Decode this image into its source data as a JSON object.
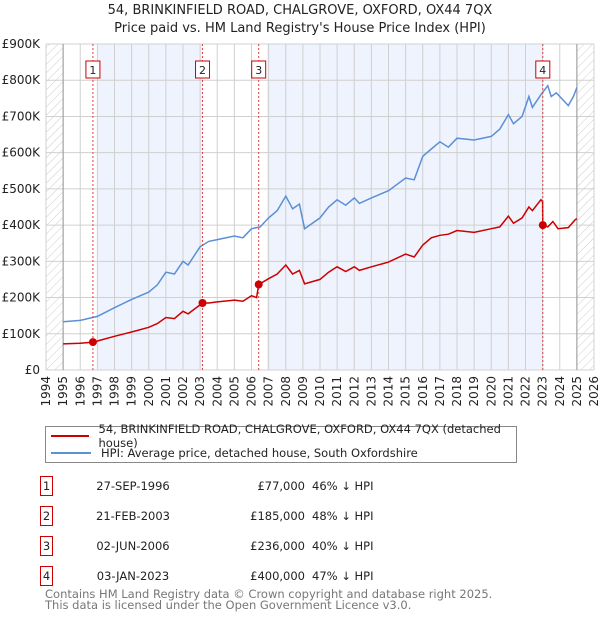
{
  "chart_data": {
    "type": "line",
    "title": "54, BRINKINFIELD ROAD, CHALGROVE, OXFORD, OX44 7QX",
    "subtitle": "Price paid vs. HM Land Registry's House Price Index (HPI)",
    "xlim": [
      1994,
      2026
    ],
    "ylim": [
      0,
      900000
    ],
    "x_ticks": [
      "1994",
      "1995",
      "1996",
      "1997",
      "1998",
      "1999",
      "2000",
      "2001",
      "2002",
      "2003",
      "2004",
      "2005",
      "2006",
      "2007",
      "2008",
      "2009",
      "2010",
      "2011",
      "2012",
      "2013",
      "2014",
      "2015",
      "2016",
      "2017",
      "2018",
      "2019",
      "2020",
      "2021",
      "2022",
      "2023",
      "2024",
      "2025",
      "2026"
    ],
    "y_ticks": [
      {
        "v": 0,
        "label": "£0"
      },
      {
        "v": 100000,
        "label": "£100K"
      },
      {
        "v": 200000,
        "label": "£200K"
      },
      {
        "v": 300000,
        "label": "£300K"
      },
      {
        "v": 400000,
        "label": "£400K"
      },
      {
        "v": 500000,
        "label": "£500K"
      },
      {
        "v": 600000,
        "label": "£600K"
      },
      {
        "v": 700000,
        "label": "£700K"
      },
      {
        "v": 800000,
        "label": "£800K"
      },
      {
        "v": 900000,
        "label": "£900K"
      }
    ],
    "grid": true,
    "legend_position": "below",
    "series": [
      {
        "name": "54, BRINKINFIELD ROAD, CHALGROVE, OXFORD, OX44 7QX (detached house)",
        "color": "#cc0000",
        "x": [
          1995,
          1996,
          1996.74,
          1997,
          1998,
          1999,
          2000,
          2000.5,
          2001,
          2001.5,
          2002,
          2002.3,
          2003.14,
          2003.5,
          2004,
          2005,
          2005.5,
          2006,
          2006.3,
          2006.42,
          2007,
          2007.5,
          2008,
          2008.4,
          2008.8,
          2009.1,
          2010,
          2010.5,
          2011,
          2011.5,
          2012,
          2012.3,
          2013,
          2014,
          2015,
          2015.5,
          2016,
          2016.5,
          2017,
          2017.5,
          2018,
          2019,
          2020,
          2020.5,
          2021,
          2021.3,
          2021.8,
          2022.2,
          2022.4,
          2022.9,
          2023.0,
          2023.01,
          2023.3,
          2023.6,
          2023.9,
          2024.5,
          2024.9,
          2025.0
        ],
        "y": [
          72000,
          74000,
          77000,
          80000,
          93000,
          105000,
          118000,
          128000,
          145000,
          142000,
          162000,
          155000,
          185000,
          185000,
          188000,
          193000,
          190000,
          205000,
          200000,
          236000,
          252000,
          265000,
          290000,
          265000,
          275000,
          238000,
          250000,
          270000,
          285000,
          272000,
          285000,
          275000,
          285000,
          298000,
          320000,
          312000,
          345000,
          365000,
          372000,
          375000,
          385000,
          380000,
          390000,
          395000,
          425000,
          405000,
          420000,
          450000,
          440000,
          470000,
          465000,
          400000,
          395000,
          410000,
          390000,
          393000,
          415000,
          418000
        ]
      },
      {
        "name": "HPI: Average price, detached house, South Oxfordshire",
        "color": "#5b8fd6",
        "x": [
          1995,
          1996,
          1997,
          1998,
          1999,
          2000,
          2000.5,
          2001,
          2001.5,
          2002,
          2002.3,
          2003,
          2003.5,
          2004,
          2005,
          2005.5,
          2006,
          2006.5,
          2007,
          2007.5,
          2008,
          2008.4,
          2008.8,
          2009.1,
          2010,
          2010.5,
          2011,
          2011.5,
          2012,
          2012.3,
          2013,
          2014,
          2015,
          2015.5,
          2016,
          2016.5,
          2017,
          2017.5,
          2018,
          2019,
          2020,
          2020.5,
          2021,
          2021.3,
          2021.8,
          2022.2,
          2022.4,
          2022.9,
          2023.3,
          2023.5,
          2023.8,
          2024.2,
          2024.5,
          2024.8,
          2025.0
        ],
        "y": [
          133000,
          137000,
          148000,
          172000,
          195000,
          215000,
          235000,
          270000,
          265000,
          300000,
          290000,
          340000,
          355000,
          360000,
          370000,
          365000,
          390000,
          395000,
          420000,
          440000,
          480000,
          445000,
          458000,
          390000,
          420000,
          450000,
          470000,
          455000,
          475000,
          460000,
          475000,
          495000,
          530000,
          525000,
          590000,
          610000,
          630000,
          615000,
          640000,
          635000,
          645000,
          665000,
          705000,
          680000,
          700000,
          755000,
          725000,
          760000,
          785000,
          755000,
          765000,
          745000,
          730000,
          755000,
          780000
        ]
      }
    ],
    "sales": [
      {
        "n": "1",
        "x": 1996.74,
        "y": 77000
      },
      {
        "n": "2",
        "x": 2003.14,
        "y": 185000
      },
      {
        "n": "3",
        "x": 2006.42,
        "y": 236000
      },
      {
        "n": "4",
        "x": 2023.01,
        "y": 400000
      }
    ]
  },
  "legend": {
    "property": "54, BRINKINFIELD ROAD, CHALGROVE, OXFORD, OX44 7QX (detached house)",
    "hpi": "HPI: Average price, detached house, South Oxfordshire"
  },
  "transactions": [
    {
      "n": "1",
      "date": "27-SEP-1996",
      "price": "£77,000",
      "hpi": "46% ↓ HPI"
    },
    {
      "n": "2",
      "date": "21-FEB-2003",
      "price": "£185,000",
      "hpi": "48% ↓ HPI"
    },
    {
      "n": "3",
      "date": "02-JUN-2006",
      "price": "£236,000",
      "hpi": "40% ↓ HPI"
    },
    {
      "n": "4",
      "date": "03-JAN-2023",
      "price": "£400,000",
      "hpi": "47% ↓ HPI"
    }
  ],
  "footer": {
    "line1": "Contains HM Land Registry data © Crown copyright and database right 2025.",
    "line2": "This data is licensed under the Open Government Licence v3.0."
  }
}
